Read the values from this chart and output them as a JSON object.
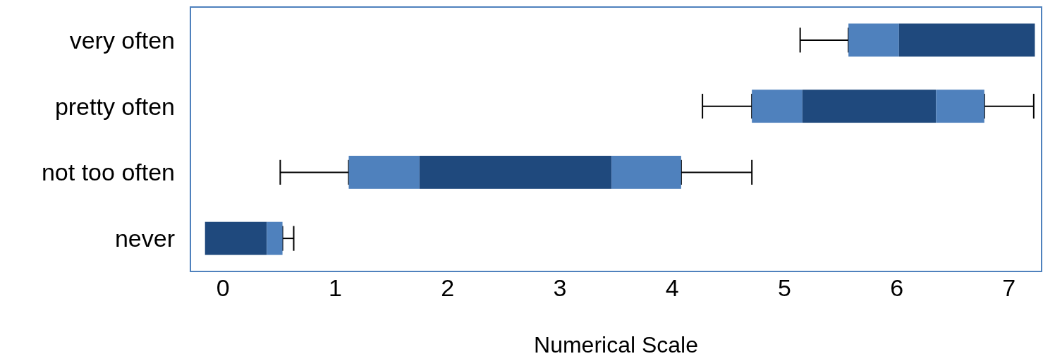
{
  "chart_data": {
    "type": "bar",
    "orientation": "horizontal",
    "xlabel": "Numerical Scale",
    "categories": [
      "very often",
      "pretty often",
      "not too often",
      "never"
    ],
    "series": [
      {
        "color": "#4f81bd",
        "base": [
          5.57,
          4.71,
          1.12,
          null
        ],
        "values": [
          0.45,
          0.45,
          0.63,
          null
        ],
        "errors": [
          [
            5.14,
            5.57
          ],
          [
            4.27,
            4.71
          ],
          [
            0.51,
            1.12
          ],
          null
        ]
      },
      {
        "color": "#1f497d",
        "base": [
          6.02,
          5.16,
          1.75,
          -0.16
        ],
        "values": [
          1.21,
          1.19,
          1.71,
          0.55
        ]
      },
      {
        "color": "#4f81bd",
        "base": [
          null,
          6.35,
          3.46,
          0.39
        ],
        "values": [
          null,
          0.43,
          0.62,
          0.14
        ],
        "errors": [
          null,
          [
            6.78,
            7.22
          ],
          [
            4.08,
            4.71
          ],
          [
            0.53,
            0.63
          ]
        ]
      }
    ],
    "xlim": [
      -0.29,
      7.29
    ],
    "xticks": [
      0,
      1,
      2,
      3,
      4,
      5,
      6,
      7
    ]
  }
}
